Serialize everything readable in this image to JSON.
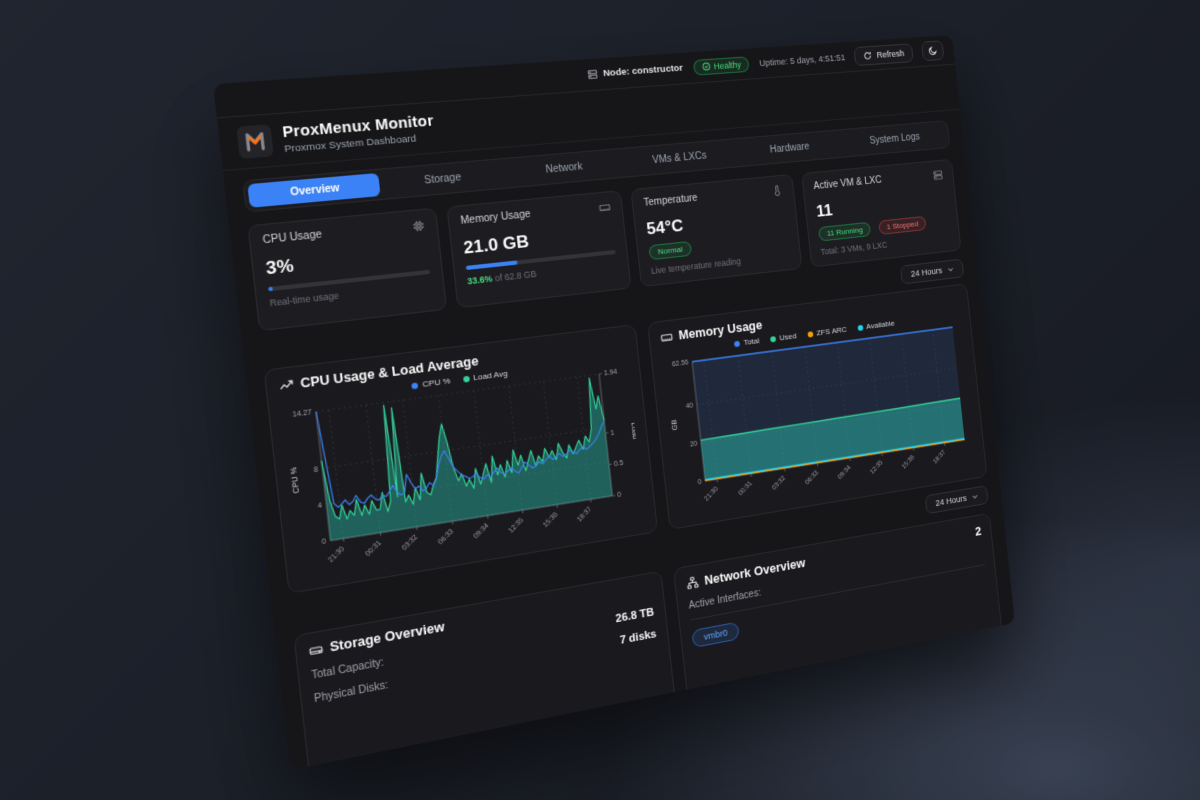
{
  "topbar": {
    "node_label": "Node: constructor",
    "health_label": "Healthy",
    "uptime": "Uptime: 5 days, 4:51:51",
    "refresh_label": "Refresh"
  },
  "header": {
    "title": "ProxMenux Monitor",
    "subtitle": "Proxmox System Dashboard"
  },
  "tabs": {
    "items": [
      {
        "label": "Overview",
        "active": true
      },
      {
        "label": "Storage",
        "active": false
      },
      {
        "label": "Network",
        "active": false
      },
      {
        "label": "VMs & LXCs",
        "active": false
      },
      {
        "label": "Hardware",
        "active": false
      },
      {
        "label": "System Logs",
        "active": false
      }
    ]
  },
  "stat_cards": {
    "cpu": {
      "title": "CPU Usage",
      "value": "3%",
      "sub": "Real-time usage",
      "progress_pct": 3
    },
    "memory": {
      "title": "Memory Usage",
      "value": "21.0 GB",
      "pct": "33.6%",
      "of_text": " of 62.8 GB",
      "progress_pct": 33.6
    },
    "temperature": {
      "title": "Temperature",
      "value": "54°C",
      "badge": "Normal",
      "sub": "Live temperature reading"
    },
    "vms": {
      "title": "Active VM & LXC",
      "value": "11",
      "running": "11 Running",
      "stopped": "1 Stopped",
      "sub": "Total: 3 VMs, 9 LXC"
    }
  },
  "time_ranges": {
    "primary": "24 Hours",
    "secondary": "24 Hours"
  },
  "storage_panel": {
    "title": "Storage Overview",
    "rows": [
      {
        "label": "Total Capacity:",
        "value": "26.8 TB"
      },
      {
        "label": "Physical Disks:",
        "value": "7 disks"
      }
    ]
  },
  "network_panel": {
    "title": "Network Overview",
    "count": "2",
    "interfaces_label": "Active Interfaces:",
    "interface_badge": "vmbr0"
  },
  "colors": {
    "accent_blue": "#3b82f6",
    "green": "#34d399",
    "teal_fill": "rgba(45,212,191,0.40)",
    "navy_fill": "rgba(56,95,170,0.22)",
    "orange": "#f59e0b",
    "cyan": "#22d3ee",
    "status_green": "#4ade80",
    "status_red": "#f87171"
  },
  "chart_data": [
    {
      "type": "line",
      "title": "CPU Usage & Load Average",
      "x_ticks": [
        "21:30",
        "00:31",
        "03:32",
        "06:33",
        "09:34",
        "12:35",
        "15:36",
        "18:37"
      ],
      "y_left": {
        "label": "CPU %",
        "ticks": [
          0,
          4,
          8,
          14.27
        ],
        "max": 14.27
      },
      "y_right": {
        "label": "Load",
        "ticks": [
          0,
          0.5,
          1,
          1.94
        ],
        "max": 1.94
      },
      "grid": true,
      "legend_position": "top-center",
      "series": [
        {
          "name": "Load Avg",
          "color": "#34d399",
          "axis": "right",
          "fill": "rgba(45,212,191,0.38)",
          "width": 1.1,
          "values": [
            1.2,
            0.6,
            0.35,
            0.3,
            0.5,
            0.28,
            0.4,
            0.32,
            0.55,
            0.3,
            0.45,
            0.3,
            0.5,
            0.35,
            0.35,
            0.6,
            0.3,
            0.45,
            1.9,
            0.5,
            1.85,
            0.4,
            0.5,
            0.35,
            0.6,
            0.4,
            0.8,
            0.5,
            0.45,
            0.6,
            0.7,
            1.0,
            1.3,
            1.5,
            1.2,
            0.8,
            0.6,
            0.7,
            0.5,
            0.6,
            0.45,
            0.75,
            0.5,
            0.65,
            0.8,
            0.5,
            0.9,
            0.6,
            0.75,
            0.55,
            0.8,
            0.6,
            0.95,
            0.7,
            0.85,
            0.6,
            0.75,
            0.9,
            0.65,
            0.8,
            0.7,
            0.9,
            0.75,
            0.85,
            0.7,
            0.95,
            0.8,
            0.7,
            0.9,
            0.75,
            0.85,
            0.95,
            0.8,
            1.0,
            0.9,
            1.1,
            1.9,
            1.4,
            1.6,
            1.2
          ]
        },
        {
          "name": "CPU %",
          "color": "#3b82f6",
          "axis": "left",
          "fill": null,
          "width": 1.1,
          "values": [
            14.27,
            9.0,
            4.0,
            3.5,
            3.8,
            4.2,
            3.6,
            3.9,
            4.5,
            3.7,
            3.5,
            4.0,
            4.3,
            3.8,
            3.6,
            4.1,
            3.9,
            4.4,
            5.0,
            4.2,
            3.8,
            4.0,
            6.0,
            5.0,
            4.2,
            4.5,
            3.9,
            4.1,
            4.7,
            4.3,
            5.0,
            6.5,
            7.5,
            8.0,
            7.0,
            6.0,
            5.5,
            5.0,
            4.8,
            4.5,
            4.6,
            5.0,
            4.4,
            4.2,
            4.6,
            4.3,
            4.8,
            5.2,
            4.6,
            4.4,
            4.7,
            5.0,
            4.5,
            4.3,
            4.9,
            5.4,
            5.0,
            4.6,
            4.8,
            5.2,
            4.9,
            5.3,
            5.7,
            5.2,
            5.5,
            5.8,
            5.4,
            5.6,
            6.0,
            5.7,
            5.5,
            5.9,
            6.2,
            5.8,
            6.1,
            6.4,
            6.8,
            7.4,
            8.2,
            8.8
          ]
        }
      ],
      "legend_order": [
        "CPU %",
        "Load Avg"
      ]
    },
    {
      "type": "area",
      "title": "Memory Usage",
      "x_ticks": [
        "21:30",
        "00:31",
        "03:32",
        "06:33",
        "09:34",
        "12:35",
        "15:36",
        "18:37"
      ],
      "y_left": {
        "label": "GB",
        "ticks": [
          0,
          20,
          40,
          62.56
        ],
        "max": 62.56
      },
      "grid": true,
      "legend_position": "top-center",
      "series": [
        {
          "name": "Total",
          "color": "#3b82f6",
          "axis": "left",
          "fill": "rgba(56,95,170,0.22)",
          "width": 1.4,
          "values": [
            62.56,
            62.56,
            62.56,
            62.56,
            62.56,
            62.56,
            62.56,
            62.56,
            62.56
          ]
        },
        {
          "name": "Used",
          "color": "#34d399",
          "axis": "left",
          "fill": "rgba(45,212,191,0.42)",
          "width": 1.4,
          "values": [
            21.5,
            21.7,
            21.9,
            22.1,
            22.3,
            22.5,
            22.7,
            22.9,
            23.2
          ]
        },
        {
          "name": "ZFS ARC",
          "color": "#f59e0b",
          "axis": "left",
          "fill": null,
          "width": 1.2,
          "values": [
            0.3,
            0.3,
            0.3,
            0.3,
            0.3,
            0.3,
            0.3,
            0.3,
            0.3
          ]
        },
        {
          "name": "Available",
          "color": "#22d3ee",
          "axis": "left",
          "fill": null,
          "width": 1.4,
          "values": [
            0.8,
            0.8,
            0.8,
            0.8,
            0.8,
            0.8,
            0.8,
            0.8,
            0.8
          ]
        }
      ],
      "legend_order": [
        "Total",
        "Used",
        "ZFS ARC",
        "Available"
      ]
    }
  ]
}
